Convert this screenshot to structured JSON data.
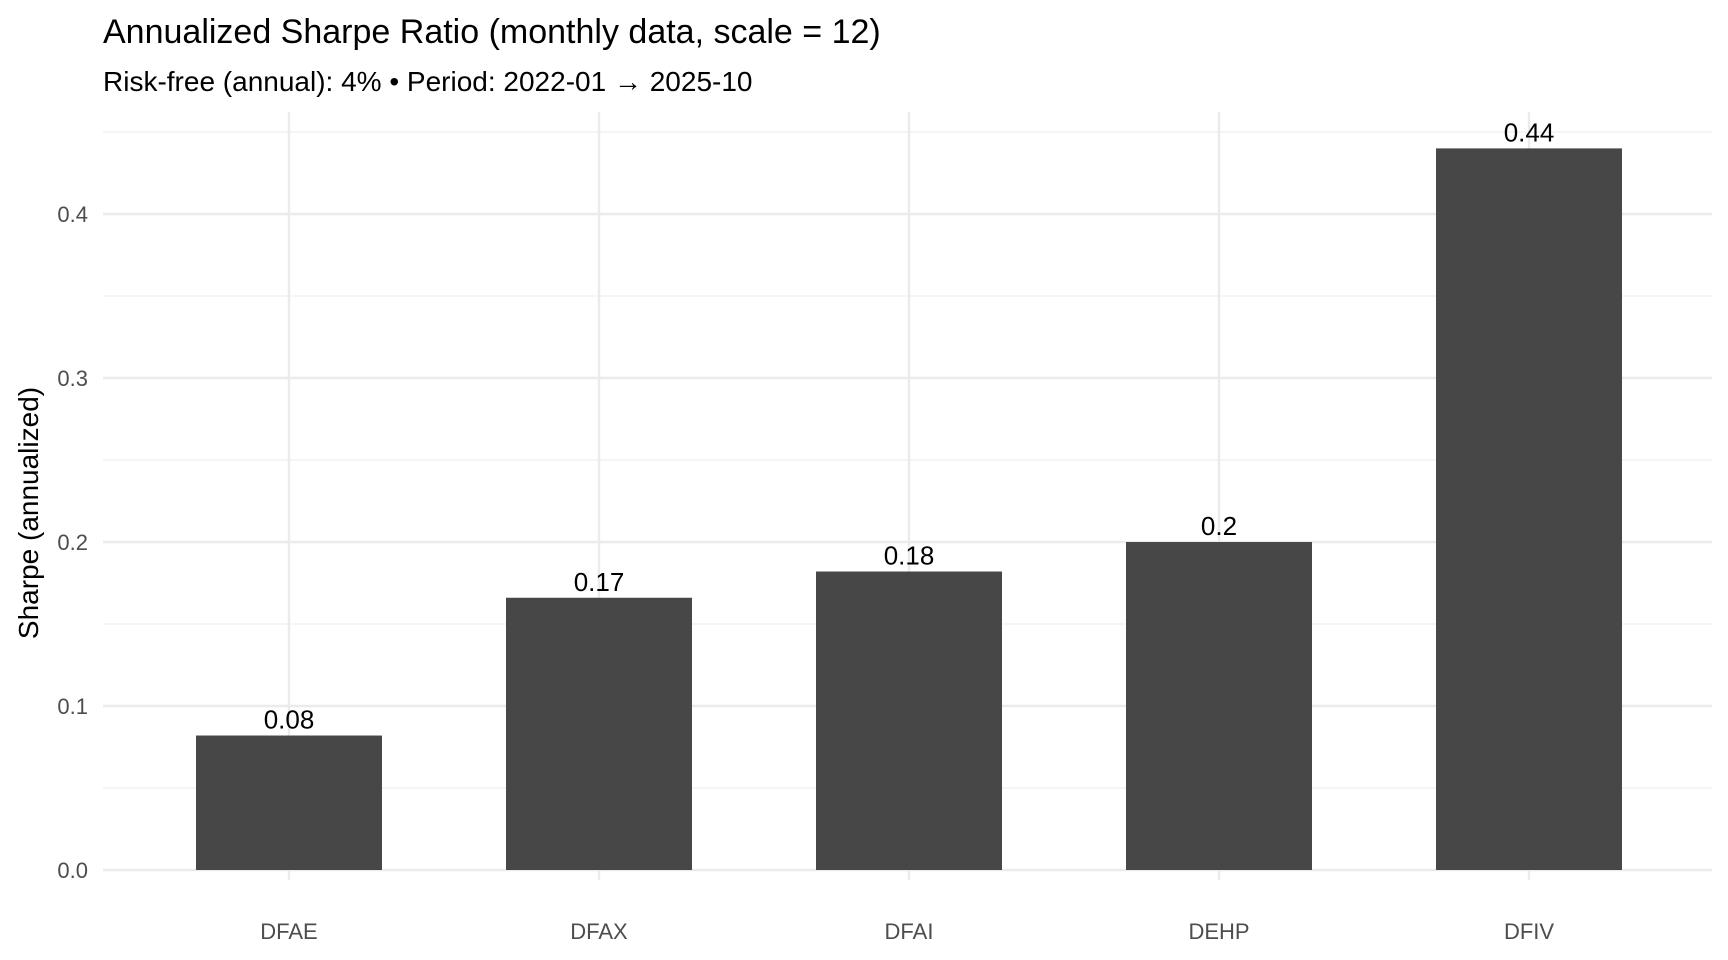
{
  "chart_data": {
    "type": "bar",
    "title": "Annualized Sharpe Ratio (monthly data, scale = 12)",
    "subtitle": "Risk-free (annual): 4% • Period: 2022-01 → 2025-10",
    "xlabel": "",
    "ylabel": "Sharpe (annualized)",
    "categories": [
      "DFAE",
      "DFAX",
      "DFAI",
      "DEHP",
      "DFIV"
    ],
    "values": [
      0.082,
      0.166,
      0.182,
      0.2,
      0.44
    ],
    "data_labels": [
      "0.08",
      "0.17",
      "0.18",
      "0.2",
      "0.44"
    ],
    "ylim": [
      0,
      0.45
    ],
    "yticks": [
      0.0,
      0.1,
      0.2,
      0.3,
      0.4
    ],
    "ytick_labels": [
      "0.0",
      "0.1",
      "0.2",
      "0.3",
      "0.4"
    ],
    "grid": true,
    "legend": "none",
    "colors": {
      "bar": "#474747",
      "grid_major": "#ebebeb",
      "grid_minor": "#f2f2f2",
      "tick_text": "#4d4d4d",
      "text": "#000000"
    }
  }
}
